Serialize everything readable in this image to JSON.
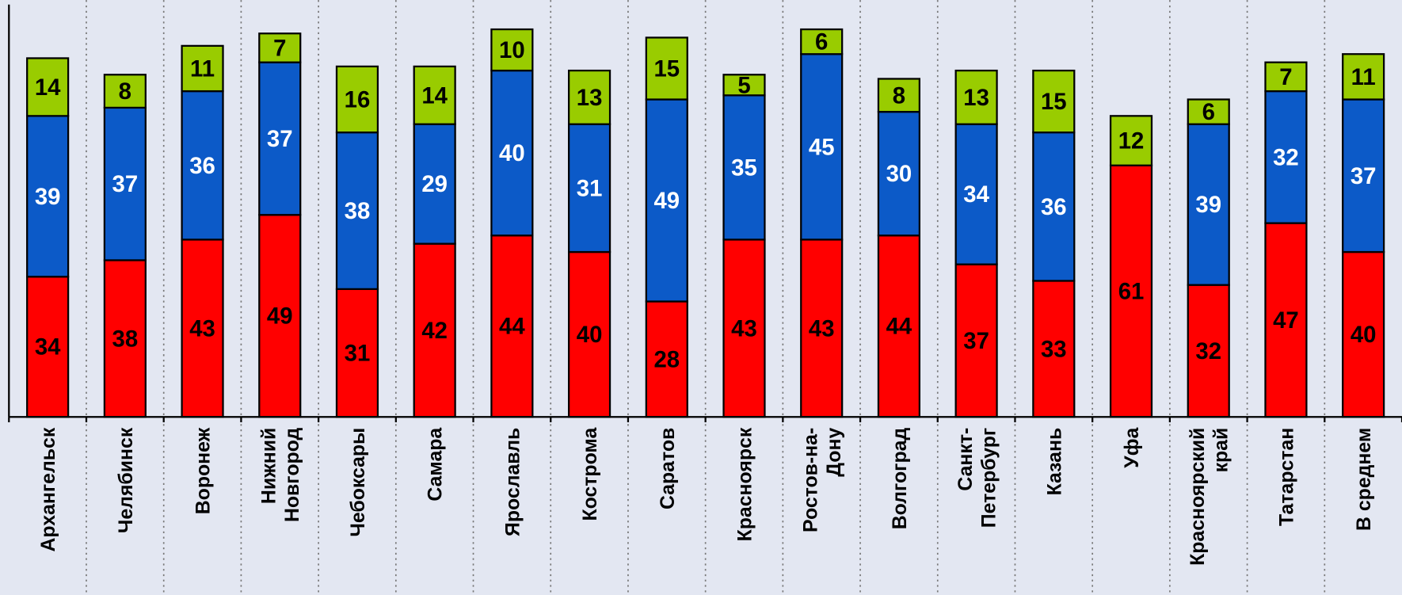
{
  "chart_data": {
    "type": "stacked-bar",
    "categories": [
      "Архангельск",
      "Челябинск",
      "Воронеж",
      "Нижний\nНовгород",
      "Чебоксары",
      "Самара",
      "Ярославль",
      "Кострома",
      "Саратов",
      "Красноярск",
      "Ростов-на-\nДону",
      "Волгоград",
      "Санкт-\nПетербург",
      "Казань",
      "Уфа",
      "Красноярский\nкрай",
      "Татарстан",
      "В среднем"
    ],
    "series": [
      {
        "color": "#ff0000",
        "label_color": "#000000",
        "values": [
          34,
          38,
          43,
          49,
          31,
          42,
          44,
          40,
          28,
          43,
          43,
          44,
          37,
          33,
          61,
          32,
          47,
          40
        ]
      },
      {
        "color": "#0c5ac8",
        "label_color": "#ffffff",
        "values": [
          39,
          37,
          36,
          37,
          38,
          29,
          40,
          31,
          49,
          35,
          45,
          30,
          34,
          36,
          null,
          39,
          32,
          37
        ]
      },
      {
        "color": "#99cc00",
        "label_color": "#000000",
        "values": [
          14,
          8,
          11,
          7,
          16,
          14,
          10,
          13,
          15,
          5,
          6,
          8,
          13,
          15,
          12,
          6,
          7,
          11
        ]
      }
    ],
    "ylim": [
      0,
      100
    ]
  }
}
